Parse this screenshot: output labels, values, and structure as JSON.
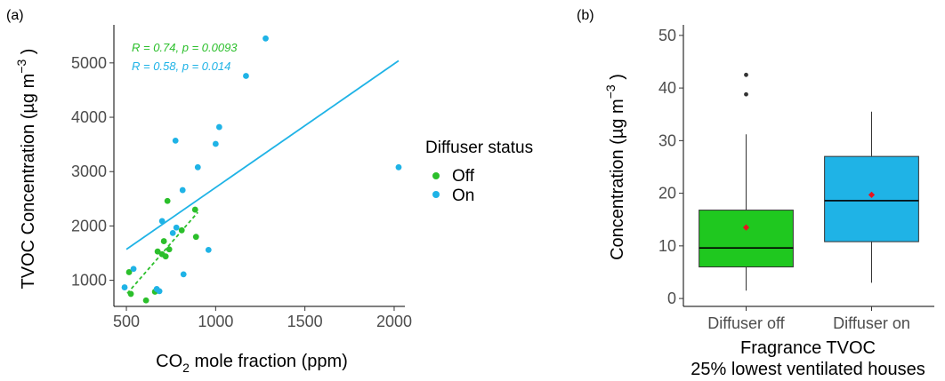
{
  "panel_a": {
    "label": "(a)",
    "chart_data": {
      "type": "scatter",
      "xlabel_main": "CO",
      "xlabel_sub": "2",
      "xlabel_rest": " mole fraction (ppm)",
      "ylabel_main": "TVOC Concentration  (µg m",
      "ylabel_sup": "−3",
      "ylabel_end": " )",
      "xlim": [
        430,
        2060
      ],
      "ylim": [
        520,
        5700
      ],
      "x_ticks": [
        500,
        1000,
        1500,
        2000
      ],
      "y_ticks": [
        1000,
        2000,
        3000,
        4000,
        5000
      ],
      "legend": {
        "title": "Diffuser status",
        "entries": [
          {
            "label": "Off",
            "color": "#2bbf2b"
          },
          {
            "label": "On",
            "color": "#1fb3e6"
          }
        ]
      },
      "series": [
        {
          "name": "Off",
          "color": "#2bbf2b",
          "points": [
            [
              515,
              1150
            ],
            [
              525,
              750
            ],
            [
              610,
              630
            ],
            [
              660,
              790
            ],
            [
              675,
              1530
            ],
            [
              700,
              1480
            ],
            [
              710,
              1720
            ],
            [
              720,
              1440
            ],
            [
              730,
              2460
            ],
            [
              810,
              1920
            ],
            [
              885,
              2300
            ],
            [
              890,
              1800
            ],
            [
              740,
              1570
            ]
          ],
          "fit": [
            [
              505,
              760
            ],
            [
              900,
              2250
            ]
          ],
          "fit_style": "dashed",
          "stat": {
            "R": "R = 0.74, ",
            "p": "p = 0.0093"
          }
        },
        {
          "name": "On",
          "color": "#1fb3e6",
          "points": [
            [
              490,
              870
            ],
            [
              540,
              1210
            ],
            [
              670,
              840
            ],
            [
              685,
              800
            ],
            [
              700,
              2090
            ],
            [
              760,
              1870
            ],
            [
              780,
              1970
            ],
            [
              775,
              3570
            ],
            [
              815,
              2660
            ],
            [
              820,
              1110
            ],
            [
              900,
              3080
            ],
            [
              960,
              1560
            ],
            [
              1000,
              3510
            ],
            [
              1020,
              3820
            ],
            [
              1170,
              4760
            ],
            [
              1280,
              5450
            ],
            [
              2025,
              3080
            ]
          ],
          "fit": [
            [
              500,
              1570
            ],
            [
              2025,
              5040
            ]
          ],
          "fit_style": "solid",
          "stat": {
            "R": "R = 0.58, ",
            "p": "p = 0.014"
          }
        }
      ]
    }
  },
  "panel_b": {
    "label": "(b)",
    "chart_data": {
      "type": "box",
      "ylabel_main": "Concentration  (µg m",
      "ylabel_sup": "−3",
      "ylabel_end": " )",
      "xlabel_line1": "Fragrance TVOC",
      "xlabel_line2": "25% lowest ventilated houses",
      "ylim": [
        -1.5,
        52
      ],
      "y_ticks": [
        0,
        10,
        20,
        30,
        40,
        50
      ],
      "categories": [
        "Diffuser off",
        "Diffuser on"
      ],
      "boxes": [
        {
          "name": "Diffuser off",
          "color": "#1fc81f",
          "q1": 6.0,
          "median": 9.6,
          "q3": 16.8,
          "whisker_low": 1.5,
          "whisker_high": 31.2,
          "mean": 13.5,
          "outliers": [
            38.8,
            42.5
          ]
        },
        {
          "name": "Diffuser on",
          "color": "#1fb3e6",
          "q1": 10.8,
          "median": 18.6,
          "q3": 27.0,
          "whisker_low": 3.0,
          "whisker_high": 35.5,
          "mean": 19.7,
          "outliers": []
        }
      ],
      "mean_color": "#e8141e"
    }
  }
}
